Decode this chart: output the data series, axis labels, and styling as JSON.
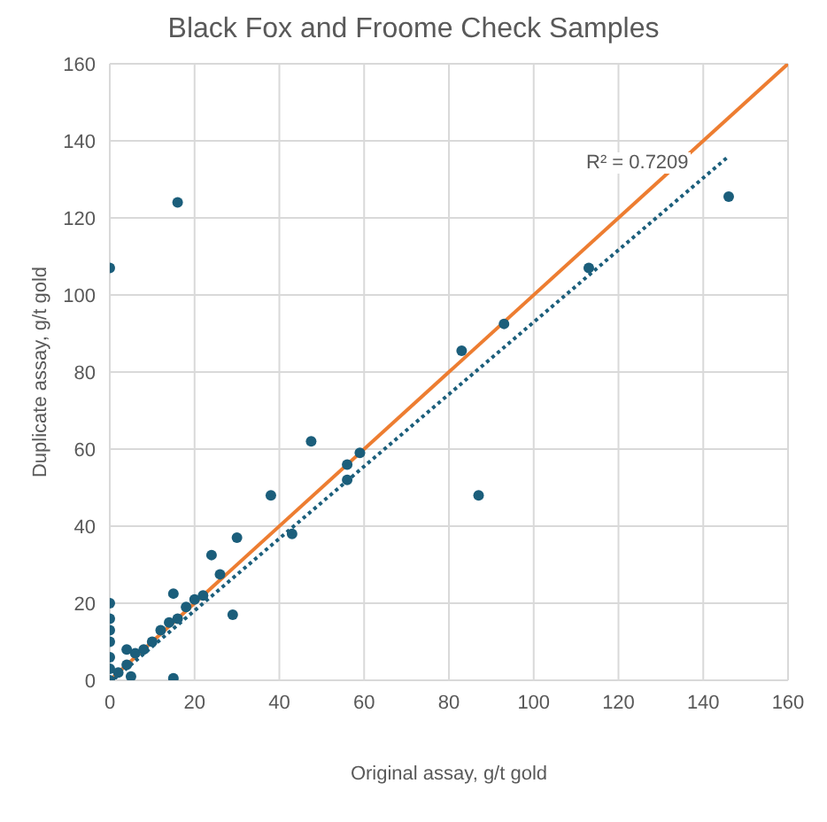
{
  "chart_data": {
    "type": "scatter",
    "title": "Black Fox and Froome Check Samples",
    "xlabel": "Original assay, g/t gold",
    "ylabel": "Duplicate assay, g/t gold",
    "xlim": [
      0,
      160
    ],
    "ylim": [
      0,
      160
    ],
    "xticks": [
      0,
      20,
      40,
      60,
      80,
      100,
      120,
      140,
      160
    ],
    "yticks": [
      0,
      20,
      40,
      60,
      80,
      100,
      120,
      140,
      160
    ],
    "grid": true,
    "marker": "circle",
    "annotations": [
      "R² = 0.7209"
    ],
    "series": [
      {
        "color": "#1b5e7b",
        "x": [
          0,
          16,
          146,
          113,
          93,
          83,
          87,
          59,
          56,
          56,
          47.5,
          38,
          43,
          30,
          29,
          26,
          24,
          15,
          15,
          0,
          0,
          0,
          0,
          0,
          0,
          0,
          2,
          4,
          6,
          8,
          10,
          12,
          14,
          16,
          18,
          20,
          22,
          5,
          4
        ],
        "values": [
          107,
          124,
          125.5,
          107,
          92.5,
          85.5,
          48,
          59,
          56,
          52,
          62,
          48,
          38,
          37,
          17,
          27.5,
          32.5,
          22.5,
          0.5,
          0,
          3,
          6,
          10,
          13,
          16,
          20,
          2,
          4,
          7,
          8,
          10,
          13,
          15,
          16,
          19,
          21,
          22,
          1,
          8
        ]
      },
      {
        "type": "line",
        "color": "#ed7d31",
        "line_style": "solid",
        "marker": "none",
        "x": [
          0,
          160
        ],
        "values": [
          0,
          160
        ]
      },
      {
        "type": "line",
        "color": "#1b5e7b",
        "line_style": "dotted",
        "marker": "none",
        "x": [
          1,
          146
        ],
        "values": [
          0.3,
          136
        ]
      }
    ]
  }
}
